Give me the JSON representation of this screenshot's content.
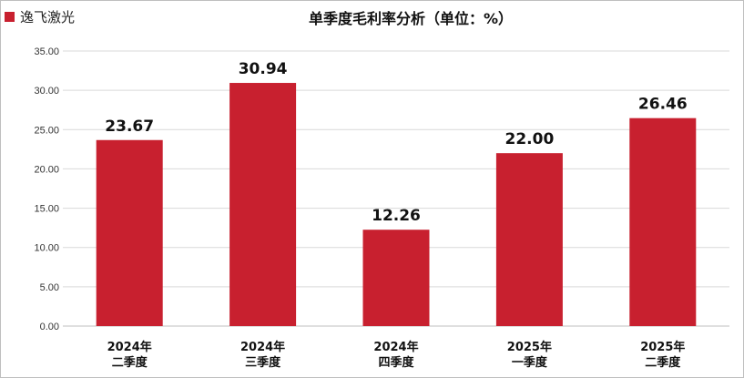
{
  "chart_data": {
    "type": "bar",
    "title": "单季度毛利率分析（单位：%）",
    "categories": [
      [
        "2024年",
        "二季度"
      ],
      [
        "2024年",
        "三季度"
      ],
      [
        "2024年",
        "四季度"
      ],
      [
        "2025年",
        "一季度"
      ],
      [
        "2025年",
        "二季度"
      ]
    ],
    "series": [
      {
        "name": "逸飞激光",
        "values": [
          23.67,
          30.94,
          12.26,
          22.0,
          26.46
        ]
      }
    ],
    "data_labels": [
      "23.67",
      "30.94",
      "12.26",
      "22.00",
      "26.46"
    ],
    "yticks": [
      "0.00",
      "5.00",
      "10.00",
      "15.00",
      "20.00",
      "25.00",
      "30.00",
      "35.00"
    ],
    "ylim": [
      0,
      35
    ],
    "grid": true,
    "legend_position": "top-left",
    "colors": {
      "bar": "#C8202F",
      "grid": "#d9d9d9",
      "axis": "#bfbfbf"
    }
  }
}
